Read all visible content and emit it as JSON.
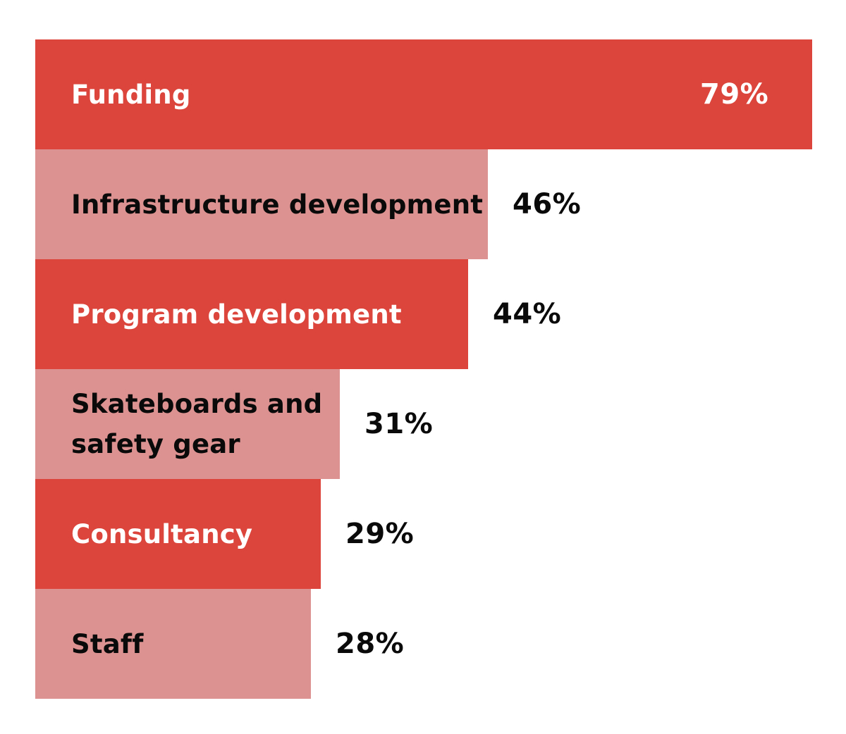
{
  "colors": {
    "dark_bar": "#db453b",
    "light_bar": "#dc9290",
    "dark_text": "#ffffff",
    "light_text": "#0a0a0a",
    "value_text": "#0a0a0a",
    "background": "#ffffff"
  },
  "chart_data": {
    "type": "bar",
    "orientation": "horizontal",
    "categories": [
      "Funding",
      "Infrastructure development",
      "Program development",
      "Skateboards and\nsafety gear",
      "Consultancy",
      "Staff"
    ],
    "values": [
      79,
      46,
      44,
      31,
      29,
      28
    ],
    "value_labels": [
      "79%",
      "46%",
      "44%",
      "31%",
      "29%",
      "28%"
    ],
    "bar_styles": [
      "dark",
      "light",
      "dark",
      "light",
      "dark",
      "light"
    ],
    "title": "",
    "xlabel": "",
    "ylabel": "",
    "xlim": [
      0,
      79
    ],
    "grid": false,
    "legend": "none"
  }
}
